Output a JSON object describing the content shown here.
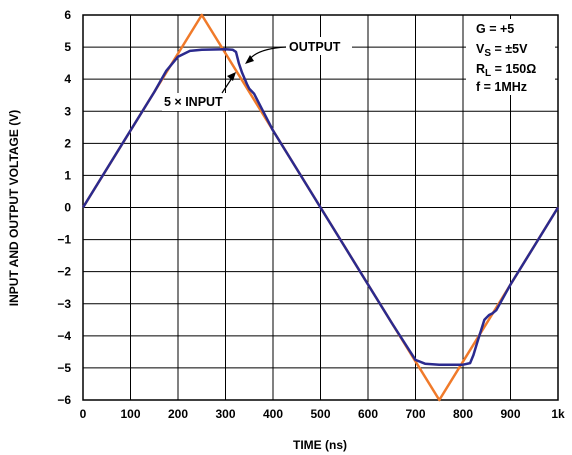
{
  "chart_data": {
    "type": "line",
    "xlabel": "TIME (ns)",
    "ylabel": "INPUT AND OUTPUT VOLTAGE (V)",
    "xlim": [
      0,
      1000
    ],
    "ylim": [
      -6,
      6
    ],
    "x_tick_labels": [
      "0",
      "100",
      "200",
      "300",
      "400",
      "500",
      "600",
      "700",
      "800",
      "900",
      "1k"
    ],
    "y_tick_labels": [
      "6",
      "5",
      "4",
      "3",
      "2",
      "1",
      "0",
      "−1",
      "−2",
      "−3",
      "−4",
      "−5",
      "−6"
    ],
    "grid": true,
    "colors": {
      "input": "#F07A2A",
      "output": "#2B2A8E"
    },
    "series": [
      {
        "name": "5 × INPUT",
        "x": [
          0,
          250,
          750,
          1000
        ],
        "y": [
          0,
          6,
          -6,
          0
        ]
      },
      {
        "name": "OUTPUT",
        "x": [
          0,
          100,
          150,
          175,
          200,
          225,
          250,
          300,
          315,
          322,
          328,
          335,
          345,
          350,
          360,
          400,
          450,
          500,
          550,
          600,
          650,
          700,
          720,
          750,
          800,
          815,
          822,
          830,
          845,
          855,
          862,
          870,
          900,
          950,
          1000
        ],
        "y": [
          0,
          2.4,
          3.6,
          4.25,
          4.7,
          4.88,
          4.92,
          4.93,
          4.92,
          4.85,
          4.5,
          4.2,
          3.85,
          3.7,
          3.55,
          2.4,
          1.2,
          0,
          -1.2,
          -2.4,
          -3.6,
          -4.75,
          -4.87,
          -4.9,
          -4.9,
          -4.85,
          -4.6,
          -4.2,
          -3.5,
          -3.35,
          -3.3,
          -3.2,
          -2.4,
          -1.2,
          0
        ]
      }
    ],
    "annotations": {
      "output_label": "OUTPUT",
      "input_label": "5 × INPUT",
      "conditions": {
        "gain": "G = +5",
        "vs_main": "V",
        "vs_sub": "S",
        "vs_value": " = ±5V",
        "rl_main": "R",
        "rl_sub": "L",
        "rl_value": " = 150Ω",
        "freq": "f = 1MHz"
      }
    }
  }
}
